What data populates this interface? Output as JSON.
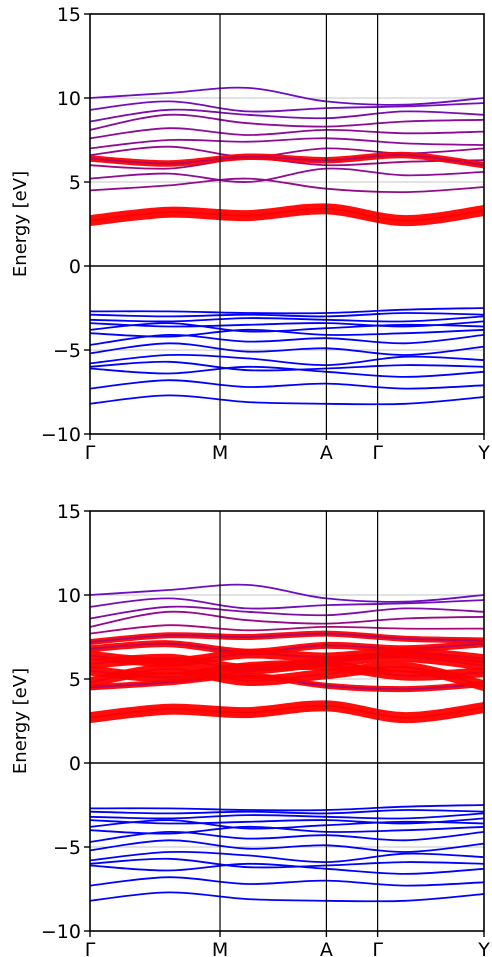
{
  "chart_data": [
    {
      "type": "line",
      "title": "",
      "ylabel": "Energy [eV]",
      "xlabel": "",
      "ylim": [
        -10,
        15
      ],
      "yticks": [
        -10,
        -5,
        0,
        5,
        10,
        15
      ],
      "ytick_labels": [
        "−10",
        "−5",
        "0",
        "5",
        "10",
        "15"
      ],
      "x_range": [
        0,
        1
      ],
      "kpoints": [
        {
          "label": "Γ",
          "x": 0.0
        },
        {
          "label": "M",
          "x": 0.33
        },
        {
          "label": "A",
          "x": 0.6
        },
        {
          "label": "Γ",
          "x": 0.73
        },
        {
          "label": "Y",
          "x": 1.0
        }
      ],
      "grid_y": [
        -5,
        0,
        5,
        10
      ],
      "fermi_level": 0,
      "colors": {
        "valence": "#0000ff",
        "conduction_low": "#ff0000",
        "conduction_high": "#5a10d8",
        "axis": "#000000",
        "grid": "#b0b0b0"
      },
      "valence_bands": [
        [
          -2.7,
          -2.7,
          -2.8,
          -2.8,
          -2.6,
          -2.5
        ],
        [
          -2.9,
          -3.0,
          -2.9,
          -3.0,
          -2.8,
          -2.9
        ],
        [
          -3.2,
          -3.3,
          -3.1,
          -3.2,
          -3.3,
          -3.0
        ],
        [
          -3.4,
          -3.6,
          -3.5,
          -3.4,
          -3.6,
          -3.3
        ],
        [
          -3.8,
          -3.4,
          -3.9,
          -3.7,
          -3.5,
          -3.6
        ],
        [
          -4.0,
          -4.2,
          -3.8,
          -4.1,
          -4.0,
          -3.8
        ],
        [
          -4.7,
          -4.1,
          -4.5,
          -4.3,
          -4.6,
          -4.1
        ],
        [
          -5.2,
          -4.6,
          -5.1,
          -4.9,
          -5.3,
          -4.8
        ],
        [
          -5.8,
          -5.3,
          -5.5,
          -5.9,
          -5.4,
          -5.6
        ],
        [
          -6.0,
          -5.7,
          -6.2,
          -6.1,
          -5.9,
          -6.0
        ],
        [
          -6.1,
          -6.4,
          -6.0,
          -6.3,
          -6.6,
          -6.3
        ],
        [
          -7.3,
          -6.8,
          -7.2,
          -7.0,
          -7.3,
          -7.1
        ],
        [
          -8.2,
          -7.7,
          -8.1,
          -8.2,
          -8.2,
          -7.8
        ]
      ],
      "conduction_bands": [
        {
          "values": [
            2.7,
            3.2,
            3.0,
            3.4,
            2.7,
            3.3
          ],
          "weight": 1.0
        },
        {
          "values": [
            6.4,
            6.1,
            6.5,
            6.3,
            6.6,
            6.0
          ],
          "weight": 0.55
        },
        {
          "values": [
            4.5,
            4.8,
            5.2,
            4.6,
            4.4,
            4.7
          ],
          "weight": 0.35
        },
        {
          "values": [
            5.2,
            5.5,
            5.0,
            5.8,
            5.4,
            5.6
          ],
          "weight": 0.3
        },
        {
          "values": [
            6.0,
            5.8,
            6.4,
            6.0,
            6.2,
            6.3
          ],
          "weight": 0.4
        },
        {
          "values": [
            6.6,
            7.1,
            6.5,
            7.0,
            6.7,
            7.0
          ],
          "weight": 0.35
        },
        {
          "values": [
            7.0,
            7.5,
            7.4,
            7.6,
            7.3,
            7.2
          ],
          "weight": 0.3
        },
        {
          "values": [
            7.6,
            8.2,
            7.8,
            8.1,
            7.9,
            8.0
          ],
          "weight": 0.3
        },
        {
          "values": [
            8.1,
            9.0,
            8.5,
            8.3,
            8.6,
            8.7
          ],
          "weight": 0.3
        },
        {
          "values": [
            8.6,
            9.3,
            9.0,
            8.8,
            9.2,
            9.0
          ],
          "weight": 0.2
        },
        {
          "values": [
            9.3,
            9.8,
            9.2,
            9.4,
            9.5,
            9.7
          ],
          "weight": 0.15
        },
        {
          "values": [
            10.0,
            10.3,
            10.6,
            9.8,
            9.6,
            10.0
          ],
          "weight": 0.1
        }
      ]
    },
    {
      "type": "line",
      "title": "",
      "ylabel": "Energy [eV]",
      "xlabel": "",
      "ylim": [
        -10,
        15
      ],
      "yticks": [
        -10,
        -5,
        0,
        5,
        10,
        15
      ],
      "ytick_labels": [
        "−10",
        "−5",
        "0",
        "5",
        "10",
        "15"
      ],
      "x_range": [
        0,
        1
      ],
      "kpoints": [
        {
          "label": "Γ",
          "x": 0.0
        },
        {
          "label": "M",
          "x": 0.33
        },
        {
          "label": "A",
          "x": 0.6
        },
        {
          "label": "Γ",
          "x": 0.73
        },
        {
          "label": "Y",
          "x": 1.0
        }
      ],
      "grid_y": [
        -5,
        0,
        5,
        10
      ],
      "fermi_level": 0,
      "colors": {
        "valence": "#0000ff",
        "conduction_low": "#ff0000",
        "conduction_high": "#5a10d8",
        "axis": "#000000",
        "grid": "#b0b0b0"
      },
      "valence_bands": [
        [
          -2.7,
          -2.7,
          -2.8,
          -2.8,
          -2.6,
          -2.5
        ],
        [
          -2.9,
          -3.0,
          -2.9,
          -3.0,
          -2.8,
          -2.9
        ],
        [
          -3.2,
          -3.3,
          -3.1,
          -3.2,
          -3.3,
          -3.0
        ],
        [
          -3.4,
          -3.6,
          -3.5,
          -3.4,
          -3.6,
          -3.3
        ],
        [
          -3.8,
          -3.4,
          -3.9,
          -3.7,
          -3.5,
          -3.6
        ],
        [
          -4.0,
          -4.2,
          -3.8,
          -4.1,
          -4.0,
          -3.8
        ],
        [
          -4.7,
          -4.1,
          -4.5,
          -4.3,
          -4.6,
          -4.1
        ],
        [
          -5.2,
          -4.6,
          -5.1,
          -4.9,
          -5.3,
          -4.8
        ],
        [
          -5.8,
          -5.3,
          -5.5,
          -5.9,
          -5.4,
          -5.6
        ],
        [
          -6.0,
          -5.7,
          -6.2,
          -6.1,
          -5.9,
          -6.0
        ],
        [
          -6.1,
          -6.4,
          -6.0,
          -6.3,
          -6.6,
          -6.3
        ],
        [
          -7.3,
          -6.8,
          -7.2,
          -7.0,
          -7.3,
          -7.1
        ],
        [
          -8.2,
          -7.7,
          -8.1,
          -8.2,
          -8.2,
          -7.8
        ]
      ],
      "conduction_bands": [
        {
          "values": [
            2.7,
            3.2,
            3.0,
            3.4,
            2.7,
            3.3
          ],
          "weight": 1.0
        },
        {
          "values": [
            4.8,
            5.6,
            4.9,
            5.3,
            5.7,
            4.6
          ],
          "weight": 0.95
        },
        {
          "values": [
            5.5,
            5.1,
            5.7,
            5.8,
            5.2,
            5.4
          ],
          "weight": 0.9
        },
        {
          "values": [
            5.9,
            6.2,
            5.6,
            6.0,
            6.3,
            5.8
          ],
          "weight": 0.9
        },
        {
          "values": [
            6.4,
            6.0,
            6.5,
            6.3,
            6.6,
            6.2
          ],
          "weight": 0.85
        },
        {
          "values": [
            4.5,
            4.8,
            5.2,
            4.6,
            4.4,
            4.7
          ],
          "weight": 0.5
        },
        {
          "values": [
            6.8,
            7.1,
            6.6,
            7.0,
            6.8,
            7.1
          ],
          "weight": 0.6
        },
        {
          "values": [
            7.2,
            7.6,
            7.5,
            7.7,
            7.4,
            7.3
          ],
          "weight": 0.5
        },
        {
          "values": [
            7.7,
            8.2,
            7.9,
            8.1,
            8.0,
            8.0
          ],
          "weight": 0.45
        },
        {
          "values": [
            8.1,
            9.0,
            8.5,
            8.3,
            8.6,
            8.7
          ],
          "weight": 0.35
        },
        {
          "values": [
            8.6,
            9.3,
            9.0,
            8.8,
            9.2,
            9.0
          ],
          "weight": 0.25
        },
        {
          "values": [
            9.3,
            9.8,
            9.2,
            9.4,
            9.5,
            9.7
          ],
          "weight": 0.15
        },
        {
          "values": [
            10.0,
            10.3,
            10.6,
            9.8,
            9.6,
            10.0
          ],
          "weight": 0.1
        }
      ]
    }
  ]
}
